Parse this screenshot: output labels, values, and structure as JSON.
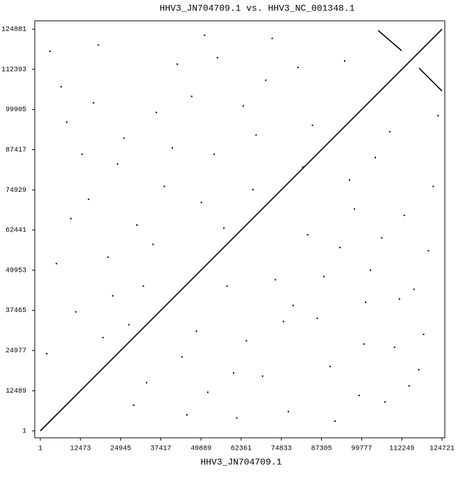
{
  "chart_data": {
    "type": "dotplot",
    "title": "HHV3_JN704709.1 vs. HHV3_NC_001348.1",
    "x_label": "HHV3_JN704709.1",
    "xlim": [
      1,
      124721
    ],
    "ylim": [
      1,
      124881
    ],
    "xticks": [
      1,
      12473,
      24945,
      37417,
      49889,
      62361,
      74833,
      87305,
      99777,
      112249,
      124721
    ],
    "yticks": [
      1,
      12489,
      24977,
      37465,
      49953,
      62441,
      74929,
      87417,
      99905,
      112393,
      124881
    ],
    "color": "#000000",
    "segments": [
      {
        "x": [
          1,
          124721
        ],
        "y": [
          1,
          124881
        ]
      },
      {
        "x": [
          104870,
          112207
        ],
        "y": [
          124500,
          118180
        ]
      },
      {
        "x": [
          117600,
          124721
        ],
        "y": [
          112780,
          105650
        ]
      }
    ],
    "dots": {
      "x": [
        3000,
        8200,
        15000,
        21000,
        27500,
        33000,
        41000,
        47000,
        52000,
        58000,
        64000,
        70000,
        77000,
        83000,
        90000,
        96000,
        101000,
        107000,
        113000,
        119000,
        5000,
        11000,
        18000,
        24000,
        30000,
        36000,
        44000,
        50000,
        55000,
        61000,
        67000,
        73000,
        80000,
        86000,
        93000,
        99000,
        104000,
        110000,
        116000,
        122000,
        2000,
        9500,
        16500,
        22500,
        29000,
        35000,
        42500,
        48500,
        54000,
        60000,
        66000,
        72000,
        78500,
        84500,
        91500,
        97500,
        102500,
        108500,
        114500,
        120500,
        6500,
        13000,
        19500,
        26000,
        32000,
        38500,
        45500,
        51000,
        57000,
        63000,
        69000,
        75500,
        81500,
        88000,
        94500,
        100500,
        106000,
        111500,
        117500,
        123500
      ],
      "y": [
        118000,
        96000,
        72000,
        54000,
        33000,
        15000,
        88000,
        104000,
        12000,
        45000,
        28000,
        109000,
        6000,
        61000,
        20000,
        78000,
        40000,
        9000,
        67000,
        30000,
        52000,
        37000,
        120000,
        83000,
        64000,
        99000,
        23000,
        71000,
        116000,
        4000,
        92000,
        47000,
        113000,
        35000,
        57000,
        11000,
        85000,
        26000,
        44000,
        76000,
        24000,
        66000,
        102000,
        42000,
        8000,
        58000,
        114000,
        31000,
        86000,
        18000,
        75000,
        122000,
        39000,
        95000,
        3000,
        69000,
        50000,
        93000,
        14000,
        56000,
        107000,
        86000,
        29000,
        91000,
        45000,
        76000,
        5000,
        123000,
        63000,
        101000,
        17000,
        34000,
        82000,
        48000,
        115000,
        27000,
        60000,
        41000,
        19000,
        98000
      ]
    }
  }
}
